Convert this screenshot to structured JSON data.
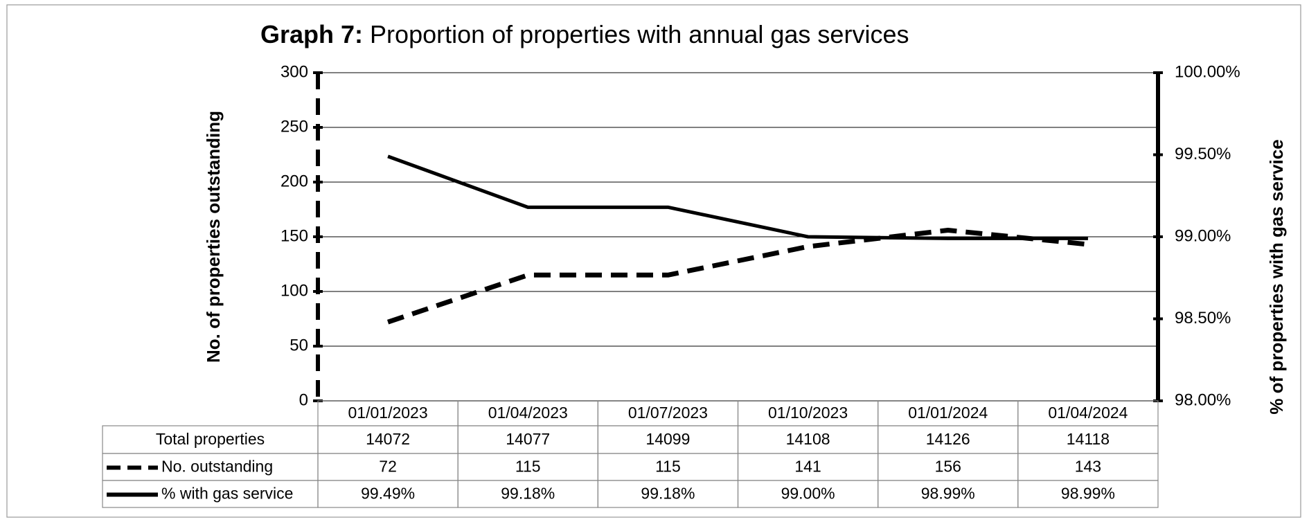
{
  "chart_data": {
    "type": "line",
    "title": {
      "label": "Graph 7:",
      "text": "Proportion of properties with annual gas services"
    },
    "ylabel": "No. of properties outstanding",
    "y2label": "% of properties with gas service",
    "categories": [
      "01/01/2023",
      "01/04/2023",
      "01/07/2023",
      "01/10/2023",
      "01/01/2024",
      "01/04/2024"
    ],
    "ylim": [
      0,
      300
    ],
    "yticks": [
      0,
      50,
      100,
      150,
      200,
      250,
      300
    ],
    "y2lim": [
      98,
      100
    ],
    "y2ticks": [
      {
        "value": 98,
        "label": "98.00%"
      },
      {
        "value": 98.5,
        "label": "98.50%"
      },
      {
        "value": 99,
        "label": "99.00%"
      },
      {
        "value": 99.5,
        "label": "99.50%"
      },
      {
        "value": 100,
        "label": "100.00%"
      }
    ],
    "grid": true,
    "table_row": {
      "name": "Total properties",
      "values": [
        14072,
        14077,
        14099,
        14108,
        14126,
        14118
      ]
    },
    "series": [
      {
        "name": "No. outstanding",
        "color": "#000000",
        "line_style": "dashed",
        "values": [
          72,
          115,
          115,
          141,
          156,
          143
        ]
      },
      {
        "name": "% with gas service",
        "color": "#000000",
        "line_style": "solid",
        "axis": "y2",
        "values": [
          99.49,
          99.18,
          99.18,
          99.0,
          98.99,
          98.99
        ],
        "value_labels": [
          "99.49%",
          "99.18%",
          "99.18%",
          "99.00%",
          "98.99%",
          "98.99%"
        ]
      }
    ]
  }
}
